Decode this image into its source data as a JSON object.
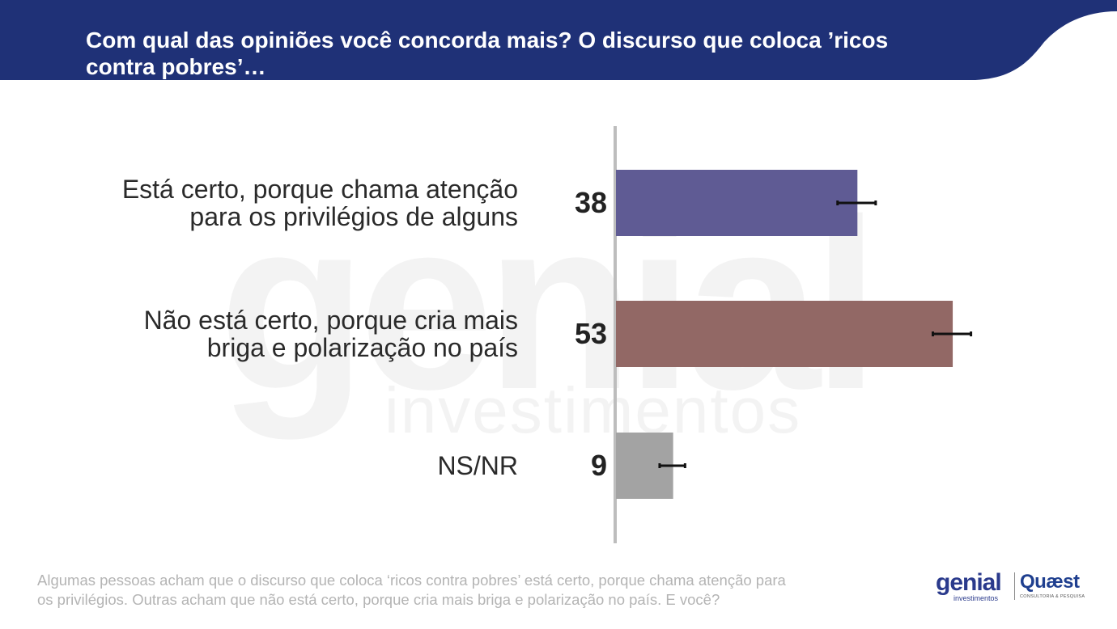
{
  "header": {
    "title": "Com qual das opiniões você concorda mais? O discurso que coloca ’ricos contra pobres’…"
  },
  "watermark": {
    "brand": "genial",
    "sub": "investimentos"
  },
  "chart_data": {
    "type": "bar",
    "orientation": "horizontal",
    "title": "Com qual das opiniões você concorda mais? O discurso que coloca ’ricos contra pobres’…",
    "categories": [
      "Está certo, porque chama atenção para os privilégios de alguns",
      "Não está certo, porque cria mais briga e polarização no país",
      "NS/NR"
    ],
    "category_lines": [
      [
        "Está certo, porque chama atenção",
        "para os privilégios de alguns"
      ],
      [
        "Não está certo, porque cria mais",
        "briga e polarização no país"
      ],
      [
        "NS/NR"
      ]
    ],
    "values": [
      38,
      53,
      9
    ],
    "value_labels": [
      "38",
      "53",
      "9"
    ],
    "error_margin": [
      3,
      3,
      2
    ],
    "colors": [
      "#5f5b94",
      "#926865",
      "#a3a3a3"
    ],
    "xlim": [
      0,
      60
    ],
    "xlabel": "",
    "ylabel": "",
    "grid": false,
    "legend": "none"
  },
  "footnote": {
    "lines": [
      "Algumas pessoas acham que o discurso que coloca ‘ricos contra pobres’ está certo, porque chama atenção para",
      "os privilégios. Outras acham que não está certo, porque cria mais briga e polarização no país. E você?"
    ]
  },
  "logos": {
    "genial": {
      "word": "genial",
      "sub": "investimentos"
    },
    "quaest": {
      "word": "Quæst",
      "sub": "CONSULTORIA & PESQUISA"
    }
  },
  "colors": {
    "header": "#1f3177",
    "watermark": "#f3f3f3",
    "axis": "#bdbdbd",
    "error_bar": "#111111"
  }
}
